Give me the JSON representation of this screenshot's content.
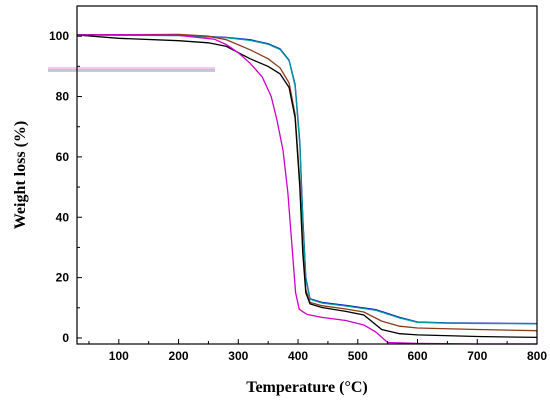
{
  "chart_data": {
    "type": "line",
    "title": "",
    "xlabel": "Temperature (°C)",
    "ylabel": "Weight loss (%)",
    "xlim": [
      30,
      800
    ],
    "ylim": [
      -2,
      110
    ],
    "xticks": [
      100,
      200,
      300,
      400,
      500,
      600,
      700,
      800
    ],
    "yticks": [
      0,
      20,
      40,
      60,
      80,
      100
    ],
    "grid": false,
    "series": [
      {
        "color": "#0000cc",
        "points": [
          [
            30,
            100.5
          ],
          [
            100,
            100.4
          ],
          [
            200,
            100.3
          ],
          [
            280,
            99.6
          ],
          [
            320,
            98.8
          ],
          [
            350,
            97.5
          ],
          [
            370,
            95.8
          ],
          [
            385,
            92
          ],
          [
            395,
            84
          ],
          [
            403,
            65
          ],
          [
            408,
            40
          ],
          [
            413,
            20
          ],
          [
            420,
            13
          ],
          [
            440,
            11.8
          ],
          [
            480,
            10.8
          ],
          [
            530,
            9.4
          ],
          [
            570,
            6.8
          ],
          [
            600,
            5.3
          ],
          [
            650,
            5.0
          ],
          [
            700,
            4.9
          ],
          [
            800,
            4.8
          ]
        ]
      },
      {
        "color": "#009999",
        "points": [
          [
            30,
            100.4
          ],
          [
            100,
            100.3
          ],
          [
            200,
            100.2
          ],
          [
            280,
            99.5
          ],
          [
            320,
            98.6
          ],
          [
            350,
            97.3
          ],
          [
            370,
            95.6
          ],
          [
            385,
            91.8
          ],
          [
            395,
            83.5
          ],
          [
            403,
            64
          ],
          [
            408,
            39
          ],
          [
            413,
            19.5
          ],
          [
            420,
            12.8
          ],
          [
            440,
            11.6
          ],
          [
            480,
            10.6
          ],
          [
            530,
            9.2
          ],
          [
            570,
            6.6
          ],
          [
            600,
            5.2
          ],
          [
            650,
            4.9
          ],
          [
            700,
            4.8
          ],
          [
            800,
            4.7
          ]
        ]
      },
      {
        "color": "#8b3a1a",
        "points": [
          [
            30,
            100.4
          ],
          [
            100,
            100.5
          ],
          [
            200,
            100.6
          ],
          [
            250,
            100.0
          ],
          [
            280,
            98.8
          ],
          [
            320,
            95.5
          ],
          [
            350,
            92.5
          ],
          [
            370,
            89.5
          ],
          [
            385,
            84.5
          ],
          [
            395,
            74
          ],
          [
            403,
            52
          ],
          [
            408,
            30
          ],
          [
            413,
            16
          ],
          [
            420,
            11.8
          ],
          [
            440,
            10.7
          ],
          [
            480,
            9.6
          ],
          [
            510,
            8.6
          ],
          [
            540,
            5.6
          ],
          [
            570,
            3.9
          ],
          [
            600,
            3.3
          ],
          [
            700,
            2.8
          ],
          [
            800,
            2.4
          ]
        ]
      },
      {
        "color": "#000000",
        "points": [
          [
            30,
            100.4
          ],
          [
            100,
            99.3
          ],
          [
            200,
            98.5
          ],
          [
            250,
            97.8
          ],
          [
            280,
            96.6
          ],
          [
            320,
            92.5
          ],
          [
            350,
            90.0
          ],
          [
            370,
            87.5
          ],
          [
            385,
            83
          ],
          [
            395,
            73
          ],
          [
            403,
            50
          ],
          [
            408,
            28
          ],
          [
            413,
            15
          ],
          [
            420,
            11.3
          ],
          [
            440,
            10.1
          ],
          [
            480,
            8.8
          ],
          [
            510,
            7.6
          ],
          [
            540,
            2.8
          ],
          [
            570,
            1.4
          ],
          [
            600,
            1.0
          ],
          [
            700,
            0.5
          ],
          [
            800,
            0.2
          ]
        ]
      },
      {
        "color": "#cc00cc",
        "points": [
          [
            30,
            100.4
          ],
          [
            100,
            100.5
          ],
          [
            200,
            100.3
          ],
          [
            260,
            99.0
          ],
          [
            280,
            97.2
          ],
          [
            300,
            94.5
          ],
          [
            320,
            91.0
          ],
          [
            340,
            86.5
          ],
          [
            355,
            80
          ],
          [
            365,
            72
          ],
          [
            375,
            62
          ],
          [
            383,
            48
          ],
          [
            390,
            30
          ],
          [
            396,
            15
          ],
          [
            402,
            9.5
          ],
          [
            415,
            7.8
          ],
          [
            440,
            6.8
          ],
          [
            480,
            5.8
          ],
          [
            510,
            4.3
          ],
          [
            530,
            2.0
          ],
          [
            550,
            -1.5
          ],
          [
            600,
            -1.8
          ],
          [
            700,
            -2.0
          ],
          [
            800,
            -2.0
          ]
        ]
      }
    ]
  }
}
